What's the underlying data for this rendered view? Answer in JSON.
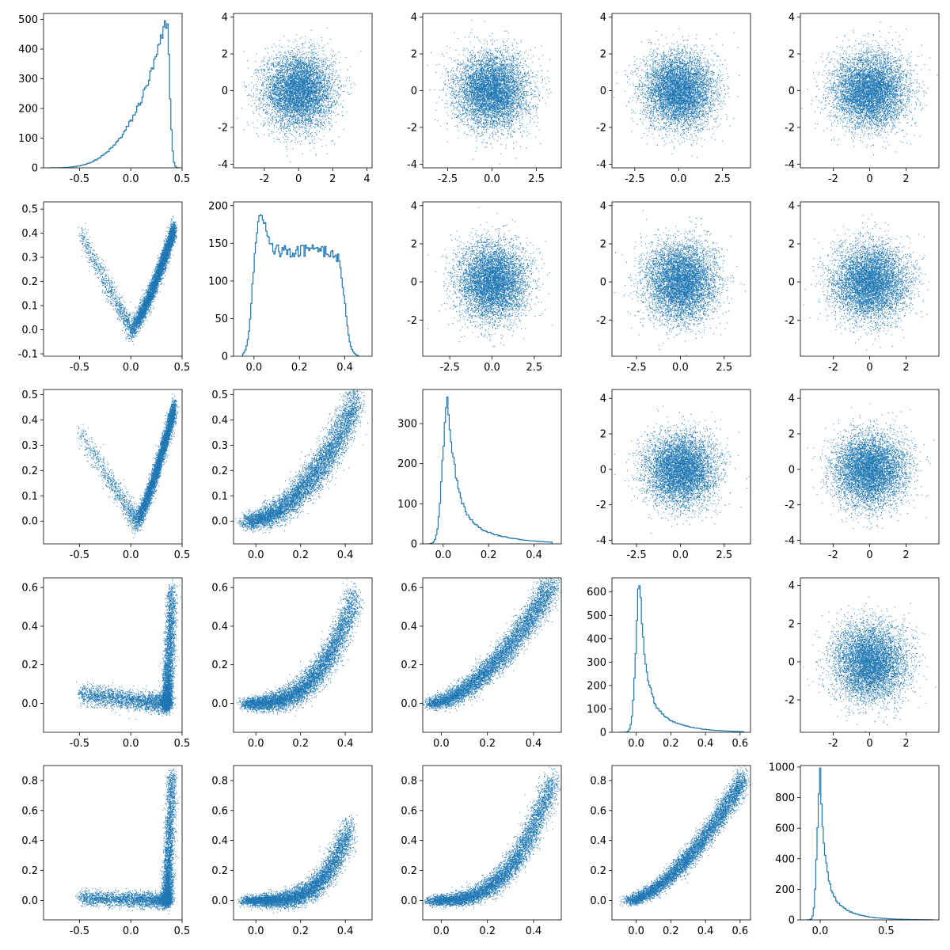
{
  "figure": {
    "rows": 5,
    "cols": 5,
    "color": "#1f77b4",
    "background": "#ffffff"
  },
  "chart_data": [
    {
      "row": 0,
      "col": 0,
      "type": "histogram",
      "xlim": [
        -0.85,
        0.5
      ],
      "ylim": [
        0,
        520
      ],
      "xticks": [
        "-0.5",
        "0.0",
        "0.5"
      ],
      "xtick_values": [
        -0.5,
        0.0,
        0.5
      ],
      "yticks": [
        "0",
        "100",
        "200",
        "300",
        "400",
        "500"
      ],
      "ytick_values": [
        0,
        100,
        200,
        300,
        400,
        500
      ],
      "distribution": {
        "kind": "left-skewed",
        "peak": 0.35,
        "peak_count": 500,
        "support": [
          -0.8,
          0.48
        ]
      }
    },
    {
      "row": 0,
      "col": 1,
      "type": "scatter",
      "xlim": [
        -3.8,
        4.3
      ],
      "ylim": [
        -4.2,
        4.2
      ],
      "xticks": [
        "-2",
        "0",
        "2",
        "4"
      ],
      "xtick_values": [
        -2,
        0,
        2,
        4
      ],
      "yticks": [
        "-4",
        "-2",
        "0",
        "2",
        "4"
      ],
      "ytick_values": [
        -4,
        -2,
        0,
        2,
        4
      ],
      "distribution": {
        "kind": "gaussian2d",
        "mean": [
          0,
          0
        ],
        "sd": [
          1,
          1
        ]
      }
    },
    {
      "row": 0,
      "col": 2,
      "type": "scatter",
      "xlim": [
        -3.9,
        3.9
      ],
      "ylim": [
        -4.2,
        4.2
      ],
      "xticks": [
        "-2.5",
        "0.0",
        "2.5"
      ],
      "xtick_values": [
        -2.5,
        0,
        2.5
      ],
      "yticks": [
        "-4",
        "-2",
        "0",
        "2",
        "4"
      ],
      "ytick_values": [
        -4,
        -2,
        0,
        2,
        4
      ],
      "distribution": {
        "kind": "gaussian2d",
        "mean": [
          0,
          0
        ],
        "sd": [
          1,
          1
        ]
      }
    },
    {
      "row": 0,
      "col": 3,
      "type": "scatter",
      "xlim": [
        -3.8,
        4.1
      ],
      "ylim": [
        -4.2,
        4.2
      ],
      "xticks": [
        "-2.5",
        "0.0",
        "2.5"
      ],
      "xtick_values": [
        -2.5,
        0,
        2.5
      ],
      "yticks": [
        "-4",
        "-2",
        "0",
        "2",
        "4"
      ],
      "ytick_values": [
        -4,
        -2,
        0,
        2,
        4
      ],
      "distribution": {
        "kind": "gaussian2d",
        "mean": [
          0,
          0
        ],
        "sd": [
          1,
          1
        ]
      }
    },
    {
      "row": 0,
      "col": 4,
      "type": "scatter",
      "xlim": [
        -3.8,
        3.8
      ],
      "ylim": [
        -4.2,
        4.2
      ],
      "xticks": [
        "-2",
        "0",
        "2"
      ],
      "xtick_values": [
        -2,
        0,
        2
      ],
      "yticks": [
        "-4",
        "-2",
        "0",
        "2",
        "4"
      ],
      "ytick_values": [
        -4,
        -2,
        0,
        2,
        4
      ],
      "distribution": {
        "kind": "gaussian2d",
        "mean": [
          0,
          0
        ],
        "sd": [
          1,
          1
        ]
      }
    },
    {
      "row": 1,
      "col": 0,
      "type": "scatter",
      "xlim": [
        -0.85,
        0.5
      ],
      "ylim": [
        -0.11,
        0.53
      ],
      "xticks": [
        "-0.5",
        "0.0",
        "0.5"
      ],
      "xtick_values": [
        -0.5,
        0,
        0.5
      ],
      "yticks": [
        "-0.1",
        "0.0",
        "0.1",
        "0.2",
        "0.3",
        "0.4",
        "0.5"
      ],
      "ytick_values": [
        -0.1,
        0,
        0.1,
        0.2,
        0.3,
        0.4,
        0.5
      ],
      "distribution": {
        "kind": "v-shape",
        "vertex": [
          0.0,
          0.0
        ],
        "right_end": [
          0.42,
          0.42
        ],
        "left_end": [
          -0.5,
          0.4
        ]
      }
    },
    {
      "row": 1,
      "col": 1,
      "type": "histogram",
      "xlim": [
        -0.09,
        0.52
      ],
      "ylim": [
        0,
        205
      ],
      "xticks": [
        "0.0",
        "0.2",
        "0.4"
      ],
      "xtick_values": [
        0,
        0.2,
        0.4
      ],
      "yticks": [
        "0",
        "50",
        "100",
        "150",
        "200"
      ],
      "ytick_values": [
        0,
        50,
        100,
        150,
        200
      ],
      "distribution": {
        "kind": "plateau",
        "support": [
          -0.05,
          0.46
        ],
        "peak": 0.03,
        "peak_count": 195,
        "plateau_count": 140
      }
    },
    {
      "row": 1,
      "col": 2,
      "type": "scatter",
      "xlim": [
        -4.1,
        4.1
      ],
      "ylim": [
        -3.9,
        4.2
      ],
      "xticks": [
        "-2.5",
        "0.0",
        "2.5"
      ],
      "xtick_values": [
        -2.5,
        0,
        2.5
      ],
      "yticks": [
        "-2",
        "0",
        "2",
        "4"
      ],
      "ytick_values": [
        -2,
        0,
        2,
        4
      ],
      "distribution": {
        "kind": "gaussian2d",
        "mean": [
          0,
          0
        ],
        "sd": [
          1,
          1
        ]
      }
    },
    {
      "row": 1,
      "col": 3,
      "type": "scatter",
      "xlim": [
        -3.9,
        4.0
      ],
      "ylim": [
        -3.9,
        4.2
      ],
      "xticks": [
        "-2.5",
        "0.0",
        "2.5"
      ],
      "xtick_values": [
        -2.5,
        0,
        2.5
      ],
      "yticks": [
        "-2",
        "0",
        "2",
        "4"
      ],
      "ytick_values": [
        -2,
        0,
        2,
        4
      ],
      "distribution": {
        "kind": "gaussian2d",
        "mean": [
          0,
          0
        ],
        "sd": [
          1,
          1
        ]
      }
    },
    {
      "row": 1,
      "col": 4,
      "type": "scatter",
      "xlim": [
        -3.8,
        3.8
      ],
      "ylim": [
        -3.9,
        4.2
      ],
      "xticks": [
        "-2",
        "0",
        "2"
      ],
      "xtick_values": [
        -2,
        0,
        2
      ],
      "yticks": [
        "-2",
        "0",
        "2",
        "4"
      ],
      "ytick_values": [
        -2,
        0,
        2,
        4
      ],
      "distribution": {
        "kind": "gaussian2d",
        "mean": [
          0,
          0
        ],
        "sd": [
          1,
          1
        ]
      }
    },
    {
      "row": 2,
      "col": 0,
      "type": "scatter",
      "xlim": [
        -0.85,
        0.5
      ],
      "ylim": [
        -0.09,
        0.52
      ],
      "xticks": [
        "-0.5",
        "0.0",
        "0.5"
      ],
      "xtick_values": [
        -0.5,
        0,
        0.5
      ],
      "yticks": [
        "0.0",
        "0.1",
        "0.2",
        "0.3",
        "0.4",
        "0.5"
      ],
      "ytick_values": [
        0,
        0.1,
        0.2,
        0.3,
        0.4,
        0.5
      ],
      "distribution": {
        "kind": "v-shape",
        "vertex": [
          0.05,
          0.0
        ],
        "right_end": [
          0.42,
          0.45
        ],
        "left_end": [
          -0.5,
          0.35
        ]
      }
    },
    {
      "row": 2,
      "col": 1,
      "type": "scatter",
      "xlim": [
        -0.1,
        0.52
      ],
      "ylim": [
        -0.09,
        0.52
      ],
      "xticks": [
        "0.0",
        "0.2",
        "0.4"
      ],
      "xtick_values": [
        0,
        0.2,
        0.4
      ],
      "yticks": [
        "0.0",
        "0.1",
        "0.2",
        "0.3",
        "0.4",
        "0.5"
      ],
      "ytick_values": [
        0,
        0.1,
        0.2,
        0.3,
        0.4,
        0.5
      ],
      "distribution": {
        "kind": "convex-curve",
        "start": [
          -0.05,
          0.0
        ],
        "end": [
          0.45,
          0.48
        ]
      }
    },
    {
      "row": 2,
      "col": 2,
      "type": "histogram",
      "xlim": [
        -0.09,
        0.52
      ],
      "ylim": [
        0,
        385
      ],
      "xticks": [
        "0.0",
        "0.2",
        "0.4"
      ],
      "xtick_values": [
        0,
        0.2,
        0.4
      ],
      "yticks": [
        "0",
        "100",
        "200",
        "300"
      ],
      "ytick_values": [
        0,
        100,
        200,
        300
      ],
      "distribution": {
        "kind": "right-skewed",
        "peak": 0.02,
        "peak_count": 365,
        "support": [
          -0.06,
          0.48
        ]
      }
    },
    {
      "row": 2,
      "col": 3,
      "type": "scatter",
      "xlim": [
        -3.9,
        4.0
      ],
      "ylim": [
        -4.2,
        4.5
      ],
      "xticks": [
        "-2.5",
        "0.0",
        "2.5"
      ],
      "xtick_values": [
        -2.5,
        0,
        2.5
      ],
      "yticks": [
        "-4",
        "-2",
        "0",
        "2",
        "4"
      ],
      "ytick_values": [
        -4,
        -2,
        0,
        2,
        4
      ],
      "distribution": {
        "kind": "gaussian2d",
        "mean": [
          0,
          0
        ],
        "sd": [
          1,
          1
        ]
      }
    },
    {
      "row": 2,
      "col": 4,
      "type": "scatter",
      "xlim": [
        -3.8,
        3.8
      ],
      "ylim": [
        -4.2,
        4.5
      ],
      "xticks": [
        "-2",
        "0",
        "2"
      ],
      "xtick_values": [
        -2,
        0,
        2
      ],
      "yticks": [
        "-4",
        "-2",
        "0",
        "2",
        "4"
      ],
      "ytick_values": [
        -4,
        -2,
        0,
        2,
        4
      ],
      "distribution": {
        "kind": "gaussian2d",
        "mean": [
          0,
          0
        ],
        "sd": [
          1,
          1
        ]
      }
    },
    {
      "row": 3,
      "col": 0,
      "type": "scatter",
      "xlim": [
        -0.85,
        0.5
      ],
      "ylim": [
        -0.15,
        0.65
      ],
      "xticks": [
        "-0.5",
        "0.0",
        "0.5"
      ],
      "xtick_values": [
        -0.5,
        0,
        0.5
      ],
      "yticks": [
        "0.0",
        "0.2",
        "0.4",
        "0.6"
      ],
      "ytick_values": [
        0,
        0.2,
        0.4,
        0.6
      ],
      "distribution": {
        "kind": "l-shape",
        "corner": [
          0.35,
          0.0
        ],
        "top": [
          0.4,
          0.6
        ],
        "left": [
          -0.5,
          0.05
        ]
      }
    },
    {
      "row": 3,
      "col": 1,
      "type": "scatter",
      "xlim": [
        -0.1,
        0.52
      ],
      "ylim": [
        -0.15,
        0.65
      ],
      "xticks": [
        "0.0",
        "0.2",
        "0.4"
      ],
      "xtick_values": [
        0,
        0.2,
        0.4
      ],
      "yticks": [
        "0.0",
        "0.2",
        "0.4",
        "0.6"
      ],
      "ytick_values": [
        0,
        0.2,
        0.4,
        0.6
      ],
      "distribution": {
        "kind": "convex-curve",
        "start": [
          -0.05,
          0.0
        ],
        "end": [
          0.44,
          0.55
        ],
        "power": 3
      }
    },
    {
      "row": 3,
      "col": 2,
      "type": "scatter",
      "xlim": [
        -0.08,
        0.52
      ],
      "ylim": [
        -0.15,
        0.65
      ],
      "xticks": [
        "0.0",
        "0.2",
        "0.4"
      ],
      "xtick_values": [
        0,
        0.2,
        0.4
      ],
      "yticks": [
        "0.0",
        "0.2",
        "0.4",
        "0.6"
      ],
      "ytick_values": [
        0,
        0.2,
        0.4,
        0.6
      ],
      "distribution": {
        "kind": "convex-curve",
        "start": [
          -0.05,
          0.0
        ],
        "end": [
          0.48,
          0.62
        ],
        "power": 1.7
      }
    },
    {
      "row": 3,
      "col": 3,
      "type": "histogram",
      "xlim": [
        -0.14,
        0.66
      ],
      "ylim": [
        0,
        660
      ],
      "xticks": [
        "0.0",
        "0.2",
        "0.4",
        "0.6"
      ],
      "xtick_values": [
        0,
        0.2,
        0.4,
        0.6
      ],
      "yticks": [
        "0",
        "100",
        "200",
        "300",
        "400",
        "500",
        "600"
      ],
      "ytick_values": [
        0,
        100,
        200,
        300,
        400,
        500,
        600
      ],
      "distribution": {
        "kind": "right-skewed",
        "peak": 0.02,
        "peak_count": 630,
        "support": [
          -0.1,
          0.62
        ]
      }
    },
    {
      "row": 3,
      "col": 4,
      "type": "scatter",
      "xlim": [
        -3.8,
        3.8
      ],
      "ylim": [
        -3.7,
        4.4
      ],
      "xticks": [
        "-2",
        "0",
        "2"
      ],
      "xtick_values": [
        -2,
        0,
        2
      ],
      "yticks": [
        "-2",
        "0",
        "2",
        "4"
      ],
      "ytick_values": [
        -2,
        0,
        2,
        4
      ],
      "distribution": {
        "kind": "gaussian2d",
        "mean": [
          0,
          0
        ],
        "sd": [
          1,
          1
        ]
      }
    },
    {
      "row": 4,
      "col": 0,
      "type": "scatter",
      "xlim": [
        -0.85,
        0.5
      ],
      "ylim": [
        -0.13,
        0.9
      ],
      "xticks": [
        "-0.5",
        "0.0",
        "0.5"
      ],
      "xtick_values": [
        -0.5,
        0,
        0.5
      ],
      "yticks": [
        "0.0",
        "0.2",
        "0.4",
        "0.6",
        "0.8"
      ],
      "ytick_values": [
        0,
        0.2,
        0.4,
        0.6,
        0.8
      ],
      "distribution": {
        "kind": "l-shape",
        "corner": [
          0.35,
          0.0
        ],
        "top": [
          0.4,
          0.85
        ],
        "left": [
          -0.5,
          0.02
        ]
      }
    },
    {
      "row": 4,
      "col": 1,
      "type": "scatter",
      "xlim": [
        -0.1,
        0.52
      ],
      "ylim": [
        -0.13,
        0.9
      ],
      "xticks": [
        "0.0",
        "0.2",
        "0.4"
      ],
      "xtick_values": [
        0,
        0.2,
        0.4
      ],
      "yticks": [
        "0.0",
        "0.2",
        "0.4",
        "0.6",
        "0.8"
      ],
      "ytick_values": [
        0,
        0.2,
        0.4,
        0.6,
        0.8
      ],
      "distribution": {
        "kind": "convex-curve",
        "start": [
          -0.05,
          0.0
        ],
        "end": [
          0.42,
          0.5
        ],
        "power": 4
      }
    },
    {
      "row": 4,
      "col": 2,
      "type": "scatter",
      "xlim": [
        -0.08,
        0.52
      ],
      "ylim": [
        -0.13,
        0.9
      ],
      "xticks": [
        "0.0",
        "0.2",
        "0.4"
      ],
      "xtick_values": [
        0,
        0.2,
        0.4
      ],
      "yticks": [
        "0.0",
        "0.2",
        "0.4",
        "0.6",
        "0.8"
      ],
      "ytick_values": [
        0,
        0.2,
        0.4,
        0.6,
        0.8
      ],
      "distribution": {
        "kind": "convex-curve",
        "start": [
          -0.05,
          0.0
        ],
        "end": [
          0.48,
          0.8
        ],
        "power": 3
      }
    },
    {
      "row": 4,
      "col": 3,
      "type": "scatter",
      "xlim": [
        -0.14,
        0.66
      ],
      "ylim": [
        -0.13,
        0.9
      ],
      "xticks": [
        "0.0",
        "0.2",
        "0.4",
        "0.6"
      ],
      "xtick_values": [
        0,
        0.2,
        0.4,
        0.6
      ],
      "yticks": [
        "0.0",
        "0.2",
        "0.4",
        "0.6",
        "0.8"
      ],
      "ytick_values": [
        0,
        0.2,
        0.4,
        0.6,
        0.8
      ],
      "distribution": {
        "kind": "convex-curve",
        "start": [
          -0.05,
          0.0
        ],
        "end": [
          0.62,
          0.82
        ],
        "power": 1.6
      }
    },
    {
      "row": 4,
      "col": 4,
      "type": "histogram",
      "xlim": [
        -0.15,
        0.9
      ],
      "ylim": [
        0,
        1010
      ],
      "xticks": [
        "0.0",
        "0.5"
      ],
      "xtick_values": [
        0,
        0.5
      ],
      "yticks": [
        "0",
        "200",
        "400",
        "600",
        "800",
        "1000"
      ],
      "ytick_values": [
        0,
        200,
        400,
        600,
        800,
        1000
      ],
      "distribution": {
        "kind": "right-skewed",
        "peak": 0.0,
        "peak_count": 960,
        "support": [
          -0.1,
          0.85
        ]
      }
    }
  ]
}
